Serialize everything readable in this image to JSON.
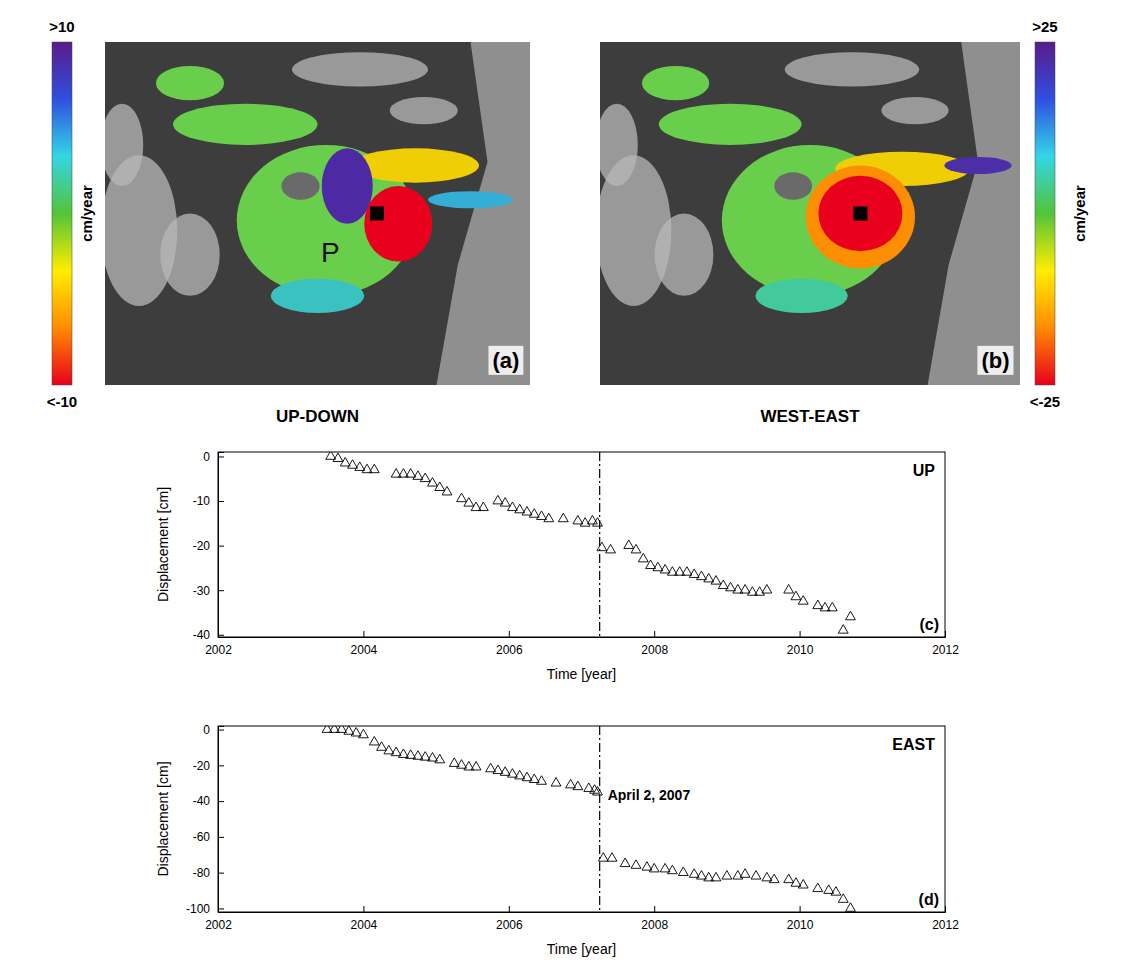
{
  "chart_data": [
    {
      "type": "map",
      "title": "UP-DOWN",
      "values": [
        0,
        0,
        0,
        3,
        -4,
        4,
        9,
        -10
      ],
      "colorbar": {
        "range": [
          -10,
          10
        ],
        "ticks": [
          {
            "value": 10,
            "label": ">10"
          },
          {
            "value": -10,
            "label": "<-10"
          }
        ],
        "label": "cm/year"
      },
      "annotations": [
        {
          "text": "(a)"
        },
        {
          "text": "P"
        }
      ]
    },
    {
      "type": "map",
      "title": "WEST-EAST",
      "values": [
        0,
        0,
        0,
        5,
        -10,
        22,
        -16,
        -25
      ],
      "colorbar": {
        "range": [
          -25,
          25
        ],
        "ticks": [
          {
            "value": 25,
            "label": ">25"
          },
          {
            "value": -25,
            "label": "<-25"
          }
        ],
        "label": "cm/year"
      },
      "annotations": [
        {
          "text": "(b)"
        }
      ]
    },
    {
      "type": "scatter",
      "title": "UP",
      "marker": "triangle-open",
      "xlabel": "Time [year]",
      "ylabel": "Displacement [cm]",
      "xlim": [
        2002,
        2012
      ],
      "xticks": [
        2002,
        2004,
        2006,
        2008,
        2010,
        2012
      ],
      "ylim": [
        -40.5,
        1
      ],
      "yticks": [
        -40,
        -30,
        -20,
        -10,
        0
      ],
      "x": [
        2003.55,
        2003.65,
        2003.75,
        2003.85,
        2003.95,
        2004.05,
        2004.15,
        2004.45,
        2004.55,
        2004.65,
        2004.75,
        2004.85,
        2004.95,
        2005.05,
        2005.15,
        2005.35,
        2005.45,
        2005.55,
        2005.65,
        2005.85,
        2005.95,
        2006.05,
        2006.15,
        2006.25,
        2006.35,
        2006.45,
        2006.55,
        2006.75,
        2006.95,
        2007.05,
        2007.15,
        2007.22,
        2007.28,
        2007.4,
        2007.65,
        2007.75,
        2007.85,
        2007.95,
        2008.05,
        2008.15,
        2008.25,
        2008.35,
        2008.45,
        2008.55,
        2008.65,
        2008.75,
        2008.85,
        2008.95,
        2009.05,
        2009.15,
        2009.25,
        2009.35,
        2009.45,
        2009.55,
        2009.85,
        2009.95,
        2010.05,
        2010.25,
        2010.35,
        2010.45,
        2010.6,
        2010.7
      ],
      "values": [
        0,
        -0.5,
        -1.5,
        -2,
        -2.5,
        -3,
        -3,
        -4,
        -4,
        -4,
        -4.5,
        -5,
        -6,
        -7,
        -8,
        -9.5,
        -10.5,
        -11.5,
        -11.5,
        -10,
        -10.5,
        -11.5,
        -12,
        -12.5,
        -13,
        -13.5,
        -14,
        -14,
        -14.5,
        -15,
        -14.5,
        -15,
        -20.5,
        -21,
        -20,
        -21,
        -23,
        -24.5,
        -25,
        -25.5,
        -26,
        -26,
        -26,
        -26.5,
        -27,
        -27.5,
        -28,
        -29,
        -29.5,
        -30,
        -30,
        -30.5,
        -30.5,
        -30,
        -30,
        -31.5,
        -32.5,
        -33.5,
        -34,
        -34,
        -39,
        -36
      ],
      "annotations": [
        {
          "text": "(c)"
        },
        {
          "x": 2007.25,
          "line_style": "dashdot"
        }
      ]
    },
    {
      "type": "scatter",
      "title": "EAST",
      "marker": "triangle-open",
      "xlabel": "Time [year]",
      "ylabel": "Displacement [cm]",
      "xlim": [
        2002,
        2012
      ],
      "xticks": [
        2002,
        2004,
        2006,
        2008,
        2010,
        2012
      ],
      "ylim": [
        -102,
        2
      ],
      "yticks": [
        -100,
        -80,
        -60,
        -40,
        -20,
        0
      ],
      "x": [
        2003.5,
        2003.6,
        2003.7,
        2003.8,
        2003.9,
        2004.0,
        2004.15,
        2004.25,
        2004.35,
        2004.45,
        2004.55,
        2004.65,
        2004.75,
        2004.85,
        2004.95,
        2005.05,
        2005.25,
        2005.35,
        2005.45,
        2005.55,
        2005.75,
        2005.85,
        2005.95,
        2006.05,
        2006.15,
        2006.25,
        2006.35,
        2006.45,
        2006.65,
        2006.85,
        2006.95,
        2007.1,
        2007.18,
        2007.22,
        2007.3,
        2007.42,
        2007.6,
        2007.75,
        2007.9,
        2008.0,
        2008.15,
        2008.25,
        2008.4,
        2008.55,
        2008.65,
        2008.75,
        2008.85,
        2009.0,
        2009.15,
        2009.25,
        2009.4,
        2009.55,
        2009.65,
        2009.85,
        2009.95,
        2010.05,
        2010.25,
        2010.4,
        2010.5,
        2010.6,
        2010.7
      ],
      "values": [
        0,
        0,
        0,
        -1,
        -2,
        -3,
        -7,
        -10,
        -12,
        -13,
        -14,
        -14.5,
        -15,
        -15.5,
        -16,
        -17,
        -19,
        -20,
        -21,
        -21,
        -22,
        -23,
        -24,
        -25,
        -26,
        -27,
        -28,
        -29,
        -30,
        -31,
        -32,
        -33,
        -34,
        -35,
        -72,
        -72,
        -75,
        -76,
        -77,
        -78,
        -78,
        -79,
        -80,
        -81,
        -82,
        -83,
        -83,
        -82,
        -82,
        -81,
        -82,
        -83,
        -84,
        -84,
        -86,
        -87,
        -89,
        -90,
        -91,
        -95,
        -100
      ],
      "annotations": [
        {
          "text": "(d)"
        },
        {
          "x": 2007.25,
          "text": "April 2, 2007",
          "line_style": "dashdot"
        }
      ]
    }
  ]
}
